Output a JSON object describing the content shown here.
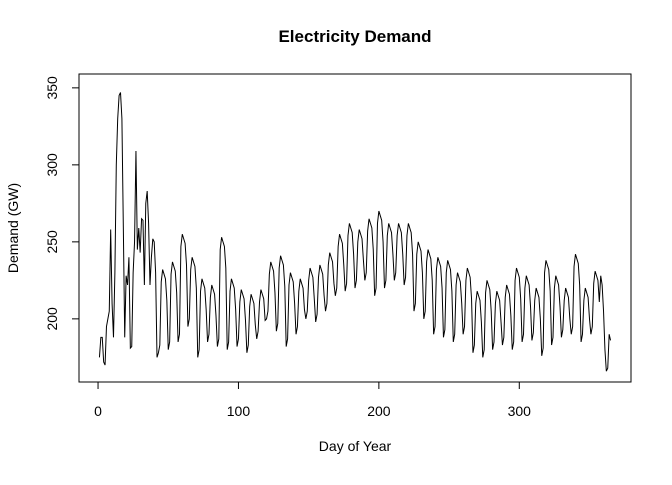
{
  "chart_data": {
    "type": "line",
    "title": "Electricity Demand",
    "xlabel": "Day of Year",
    "ylabel": "Demand (GW)",
    "color": "#000000",
    "xlim": [
      -13.56,
      379.56
    ],
    "ylim": [
      159,
      359
    ],
    "xticks": [
      0,
      100,
      200,
      300
    ],
    "yticks": [
      200,
      250,
      300,
      350
    ],
    "x": [
      1,
      2,
      3,
      4,
      5,
      6,
      7,
      8,
      9,
      10,
      11,
      12,
      13,
      14,
      15,
      16,
      17,
      18,
      19,
      20,
      21,
      22,
      23,
      24,
      25,
      26,
      27,
      28,
      29,
      30,
      31,
      32,
      33,
      34,
      35,
      36,
      37,
      38,
      39,
      40,
      41,
      42,
      43,
      44,
      45,
      46,
      47,
      48,
      49,
      50,
      51,
      52,
      53,
      54,
      55,
      56,
      57,
      58,
      59,
      60,
      61,
      62,
      63,
      64,
      65,
      66,
      67,
      68,
      69,
      70,
      71,
      72,
      73,
      74,
      75,
      76,
      77,
      78,
      79,
      80,
      81,
      82,
      83,
      84,
      85,
      86,
      87,
      88,
      89,
      90,
      91,
      92,
      93,
      94,
      95,
      96,
      97,
      98,
      99,
      100,
      101,
      102,
      103,
      104,
      105,
      106,
      107,
      108,
      109,
      110,
      111,
      112,
      113,
      114,
      115,
      116,
      117,
      118,
      119,
      120,
      121,
      122,
      123,
      124,
      125,
      126,
      127,
      128,
      129,
      130,
      131,
      132,
      133,
      134,
      135,
      136,
      137,
      138,
      139,
      140,
      141,
      142,
      143,
      144,
      145,
      146,
      147,
      148,
      149,
      150,
      151,
      152,
      153,
      154,
      155,
      156,
      157,
      158,
      159,
      160,
      161,
      162,
      163,
      164,
      165,
      166,
      167,
      168,
      169,
      170,
      171,
      172,
      173,
      174,
      175,
      176,
      177,
      178,
      179,
      180,
      181,
      182,
      183,
      184,
      185,
      186,
      187,
      188,
      189,
      190,
      191,
      192,
      193,
      194,
      195,
      196,
      197,
      198,
      199,
      200,
      201,
      202,
      203,
      204,
      205,
      206,
      207,
      208,
      209,
      210,
      211,
      212,
      213,
      214,
      215,
      216,
      217,
      218,
      219,
      220,
      221,
      222,
      223,
      224,
      225,
      226,
      227,
      228,
      229,
      230,
      231,
      232,
      233,
      234,
      235,
      236,
      237,
      238,
      239,
      240,
      241,
      242,
      243,
      244,
      245,
      246,
      247,
      248,
      249,
      250,
      251,
      252,
      253,
      254,
      255,
      256,
      257,
      258,
      259,
      260,
      261,
      262,
      263,
      264,
      265,
      266,
      267,
      268,
      269,
      270,
      271,
      272,
      273,
      274,
      275,
      276,
      277,
      278,
      279,
      280,
      281,
      282,
      283,
      284,
      285,
      286,
      287,
      288,
      289,
      290,
      291,
      292,
      293,
      294,
      295,
      296,
      297,
      298,
      299,
      300,
      301,
      302,
      303,
      304,
      305,
      306,
      307,
      308,
      309,
      310,
      311,
      312,
      313,
      314,
      315,
      316,
      317,
      318,
      319,
      320,
      321,
      322,
      323,
      324,
      325,
      326,
      327,
      328,
      329,
      330,
      331,
      332,
      333,
      334,
      335,
      336,
      337,
      338,
      339,
      340,
      341,
      342,
      343,
      344,
      345,
      346,
      347,
      348,
      349,
      350,
      351,
      352,
      353,
      354,
      355,
      356,
      357,
      358,
      359,
      360,
      361,
      362,
      363,
      364,
      365
    ],
    "values": [
      175,
      188,
      188,
      172,
      170,
      195,
      200,
      205,
      258,
      210,
      188,
      230,
      300,
      330,
      345,
      347,
      330,
      260,
      188,
      228,
      222,
      240,
      181,
      182,
      230,
      250,
      309,
      245,
      259,
      243,
      265,
      264,
      222,
      275,
      283,
      262,
      222,
      240,
      252,
      250,
      230,
      175,
      178,
      183,
      224,
      232,
      229,
      226,
      212,
      180,
      185,
      229,
      237,
      234,
      231,
      217,
      185,
      190,
      247,
      255,
      252,
      249,
      235,
      195,
      200,
      232,
      240,
      237,
      234,
      220,
      175,
      180,
      218,
      226,
      223,
      220,
      206,
      185,
      190,
      214,
      222,
      219,
      216,
      202,
      182,
      187,
      245,
      253,
      250,
      247,
      233,
      180,
      185,
      218,
      226,
      223,
      220,
      206,
      182,
      187,
      211,
      219,
      216,
      213,
      199,
      178,
      183,
      208,
      216,
      213,
      210,
      196,
      187,
      192,
      211,
      219,
      216,
      213,
      199,
      200,
      205,
      229,
      237,
      234,
      231,
      217,
      192,
      197,
      233,
      241,
      238,
      235,
      221,
      182,
      187,
      222,
      230,
      227,
      224,
      210,
      190,
      195,
      218,
      226,
      223,
      220,
      206,
      200,
      205,
      225,
      233,
      230,
      227,
      213,
      198,
      203,
      227,
      235,
      232,
      229,
      215,
      205,
      210,
      235,
      243,
      240,
      237,
      223,
      215,
      220,
      247,
      255,
      252,
      249,
      235,
      218,
      223,
      254,
      262,
      259,
      256,
      242,
      220,
      225,
      250,
      258,
      255,
      252,
      238,
      225,
      230,
      257,
      265,
      262,
      259,
      245,
      215,
      220,
      262,
      270,
      267,
      264,
      250,
      220,
      225,
      254,
      262,
      259,
      256,
      242,
      225,
      230,
      254,
      262,
      259,
      256,
      242,
      222,
      227,
      254,
      262,
      259,
      256,
      242,
      205,
      210,
      242,
      250,
      247,
      244,
      230,
      200,
      205,
      237,
      245,
      242,
      239,
      225,
      190,
      195,
      232,
      240,
      237,
      234,
      220,
      188,
      193,
      230,
      238,
      235,
      232,
      218,
      185,
      190,
      222,
      230,
      227,
      224,
      210,
      190,
      195,
      225,
      233,
      230,
      227,
      213,
      178,
      183,
      210,
      218,
      215,
      212,
      198,
      175,
      180,
      217,
      225,
      222,
      219,
      205,
      180,
      185,
      210,
      218,
      215,
      212,
      198,
      183,
      188,
      214,
      222,
      219,
      216,
      202,
      180,
      185,
      225,
      233,
      230,
      227,
      213,
      185,
      190,
      220,
      228,
      225,
      222,
      208,
      186,
      191,
      212,
      220,
      217,
      214,
      200,
      176,
      181,
      230,
      238,
      235,
      232,
      218,
      183,
      188,
      220,
      228,
      225,
      222,
      208,
      188,
      193,
      212,
      220,
      217,
      214,
      200,
      190,
      195,
      234,
      242,
      239,
      236,
      222,
      185,
      190,
      212,
      220,
      217,
      214,
      200,
      190,
      195,
      223,
      231,
      228,
      225,
      211,
      228,
      222,
      205,
      180,
      166,
      168,
      190,
      186
    ]
  }
}
